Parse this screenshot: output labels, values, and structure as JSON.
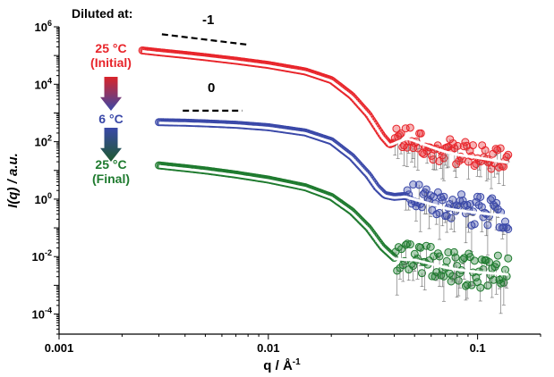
{
  "chart_data": {
    "type": "scatter",
    "title": "",
    "xlabel": "q / Å",
    "xlabel_sup": "-1",
    "ylabel": "I(q) / a.u.",
    "x_scale": "log",
    "y_scale": "log",
    "xlim": [
      0.001,
      0.2
    ],
    "ylim": [
      2e-05,
      1000000
    ],
    "x_ticks": [
      {
        "value": 0.001,
        "label": "0.001"
      },
      {
        "value": 0.01,
        "label": "0.01"
      },
      {
        "value": 0.1,
        "label": "0.1"
      }
    ],
    "y_ticks": [
      {
        "value": 1000000,
        "base": "10",
        "exp": "6"
      },
      {
        "value": 10000,
        "base": "10",
        "exp": "4"
      },
      {
        "value": 100,
        "base": "10",
        "exp": "2"
      },
      {
        "value": 1,
        "base": "10",
        "exp": "0"
      },
      {
        "value": 0.01,
        "base": "10",
        "exp": "-2"
      },
      {
        "value": 0.0001,
        "base": "10",
        "exp": "-4"
      }
    ],
    "grid": false,
    "legend": {
      "heading": "Diluted at:",
      "entries": [
        {
          "line1": "25 °C",
          "line2": "(Initial)",
          "color": "#e8242a"
        },
        {
          "line1": "6 °C",
          "line2": "",
          "color": "#3a48a8"
        },
        {
          "line1": "25 °C",
          "line2": "(Final)",
          "color": "#1e7a2e"
        }
      ],
      "arrow_colors": [
        [
          "#d9242a",
          "#3a48a8"
        ],
        [
          "#3a48a8",
          "#1e5a2e"
        ]
      ]
    },
    "slope_guides": [
      {
        "label": "-1",
        "x": [
          0.0031,
          0.0079
        ],
        "y": [
          550000,
          240000
        ]
      },
      {
        "label": "0",
        "x": [
          0.0039,
          0.0075
        ],
        "y": [
          1200,
          1200
        ]
      }
    ],
    "series": [
      {
        "color": "#e8242a",
        "fit_color": "#ffffff",
        "points": [
          [
            0.0025,
            150000
          ],
          [
            0.003,
            130000
          ],
          [
            0.004,
            105000
          ],
          [
            0.005,
            88000
          ],
          [
            0.007,
            66000
          ],
          [
            0.01,
            47000
          ],
          [
            0.015,
            28000
          ],
          [
            0.02,
            14000
          ],
          [
            0.025,
            4000
          ],
          [
            0.03,
            900
          ],
          [
            0.035,
            160
          ],
          [
            0.038,
            80
          ],
          [
            0.042,
            110
          ],
          [
            0.046,
            140
          ],
          [
            0.05,
            115
          ],
          [
            0.06,
            70
          ],
          [
            0.07,
            48
          ],
          [
            0.08,
            38
          ],
          [
            0.1,
            30
          ],
          [
            0.12,
            24
          ],
          [
            0.14,
            20
          ]
        ],
        "scatter_from": 0.04,
        "scatter_decades": 0.45,
        "errorbar_decades": 0.7
      },
      {
        "color": "#3a48a8",
        "fit_color": "#ffffff",
        "points": [
          [
            0.003,
            480
          ],
          [
            0.004,
            460
          ],
          [
            0.005,
            435
          ],
          [
            0.007,
            390
          ],
          [
            0.01,
            320
          ],
          [
            0.015,
            210
          ],
          [
            0.02,
            105
          ],
          [
            0.025,
            30
          ],
          [
            0.03,
            7
          ],
          [
            0.033,
            2.6
          ],
          [
            0.036,
            1.4
          ],
          [
            0.04,
            1.2
          ],
          [
            0.045,
            1.3
          ],
          [
            0.05,
            1.05
          ],
          [
            0.06,
            0.72
          ],
          [
            0.07,
            0.52
          ],
          [
            0.08,
            0.44
          ],
          [
            0.1,
            0.36
          ],
          [
            0.12,
            0.31
          ],
          [
            0.14,
            0.28
          ]
        ],
        "scatter_from": 0.045,
        "scatter_decades": 0.55,
        "errorbar_decades": 0.9
      },
      {
        "color": "#1e7a2e",
        "fit_color": "#ffffff",
        "points": [
          [
            0.003,
            15
          ],
          [
            0.004,
            12
          ],
          [
            0.005,
            10
          ],
          [
            0.007,
            7.2
          ],
          [
            0.01,
            4.8
          ],
          [
            0.015,
            2.6
          ],
          [
            0.02,
            1.2
          ],
          [
            0.025,
            0.38
          ],
          [
            0.03,
            0.1
          ],
          [
            0.035,
            0.022
          ],
          [
            0.04,
            0.009
          ],
          [
            0.045,
            0.0085
          ],
          [
            0.05,
            0.0082
          ],
          [
            0.06,
            0.006
          ],
          [
            0.07,
            0.0045
          ],
          [
            0.08,
            0.0038
          ],
          [
            0.1,
            0.0031
          ],
          [
            0.12,
            0.0028
          ],
          [
            0.14,
            0.0026
          ]
        ],
        "scatter_from": 0.04,
        "scatter_decades": 0.6,
        "errorbar_decades": 1.0
      }
    ]
  }
}
